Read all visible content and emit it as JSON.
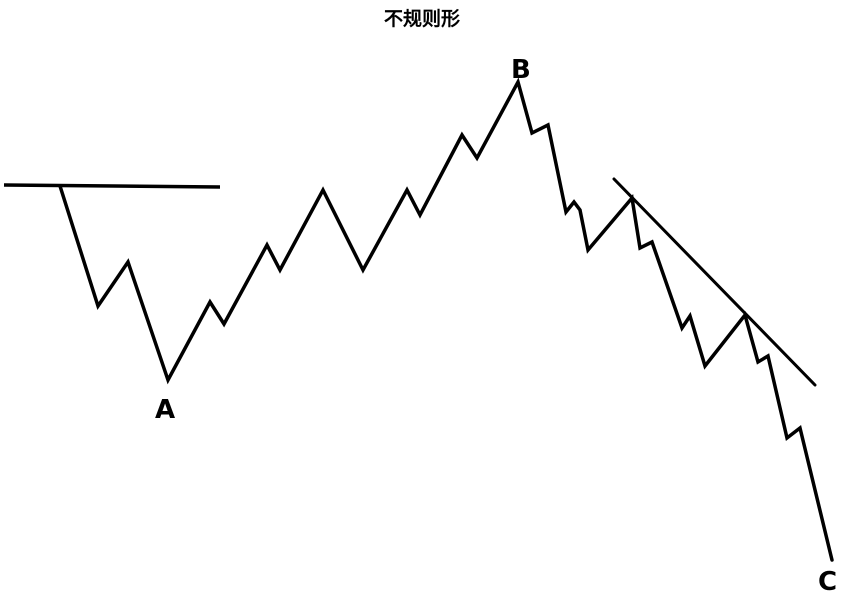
{
  "title": "不规则形",
  "labels": {
    "a": "A",
    "b": "B",
    "c": "C"
  },
  "colors": {
    "line": "#000000",
    "background": "#ffffff"
  }
}
